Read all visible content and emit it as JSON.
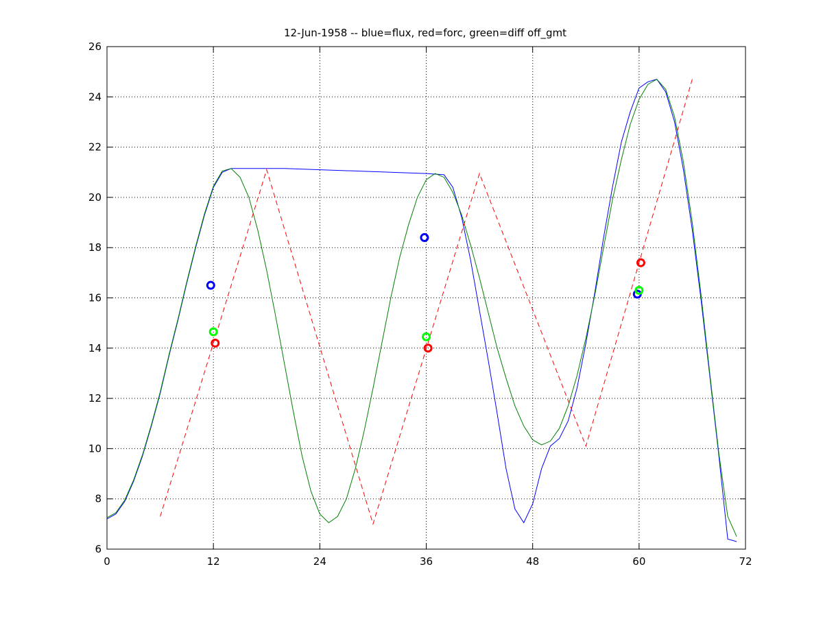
{
  "chart_data": {
    "type": "line",
    "title": "12-Jun-1958 -- blue=flux, red=forc, green=diff off_gmt",
    "xlabel": "",
    "ylabel": "",
    "xlim": [
      0,
      72
    ],
    "ylim": [
      6,
      26
    ],
    "xticks": [
      0,
      12,
      24,
      36,
      48,
      60,
      72
    ],
    "xtick_labels": [
      "0",
      "12",
      "24",
      "36",
      "48",
      "60",
      "72"
    ],
    "yticks": [
      6,
      8,
      10,
      12,
      14,
      16,
      18,
      20,
      22,
      24,
      26
    ],
    "ytick_labels": [
      "6",
      "8",
      "10",
      "12",
      "14",
      "16",
      "18",
      "20",
      "22",
      "24",
      "26"
    ],
    "grid": true,
    "colors": {
      "blue": "#0000ff",
      "green": "#008000",
      "red": "#ff0000",
      "marker_green": "#00ff00"
    },
    "series": [
      {
        "color": "#0000ff",
        "style": "solid",
        "x": [
          0,
          1,
          2,
          3,
          4,
          5,
          6,
          7,
          8,
          9,
          10,
          11,
          12,
          13,
          14,
          15,
          16,
          18,
          20,
          24,
          28,
          32,
          36,
          38,
          39,
          40,
          41,
          42,
          43,
          44,
          45,
          46,
          47,
          48,
          49,
          50,
          51,
          52,
          53,
          54,
          55,
          56,
          57,
          58,
          59,
          60,
          61,
          62,
          63,
          64,
          65,
          66,
          67,
          68,
          69,
          70,
          71
        ],
        "y": [
          7.2,
          7.4,
          7.9,
          8.7,
          9.7,
          10.9,
          12.2,
          13.7,
          15.1,
          16.6,
          18.0,
          19.3,
          20.4,
          21.0,
          21.15,
          21.15,
          21.15,
          21.15,
          21.15,
          21.1,
          21.05,
          21.0,
          20.95,
          20.9,
          20.4,
          19.2,
          17.5,
          15.5,
          13.5,
          11.4,
          9.2,
          7.6,
          7.05,
          7.8,
          9.2,
          10.1,
          10.4,
          11.1,
          12.4,
          14.2,
          16.2,
          18.4,
          20.4,
          22.2,
          23.4,
          24.35,
          24.6,
          24.7,
          24.2,
          23.0,
          21.1,
          18.7,
          15.9,
          12.8,
          9.7,
          6.4,
          6.3
        ]
      },
      {
        "color": "#008000",
        "style": "solid",
        "x": [
          0,
          1,
          2,
          3,
          4,
          5,
          6,
          7,
          8,
          9,
          10,
          11,
          12,
          13,
          14,
          15,
          16,
          17,
          18,
          19,
          20,
          21,
          22,
          23,
          24,
          25,
          26,
          27,
          28,
          29,
          30,
          31,
          32,
          33,
          34,
          35,
          36,
          37,
          38,
          39,
          40,
          41,
          42,
          43,
          44,
          45,
          46,
          47,
          48,
          49,
          50,
          51,
          52,
          53,
          54,
          55,
          56,
          57,
          58,
          59,
          60,
          61,
          62,
          63,
          64,
          65,
          66,
          67,
          68,
          69,
          70,
          71
        ],
        "y": [
          7.25,
          7.45,
          7.95,
          8.75,
          9.75,
          10.95,
          12.25,
          13.75,
          15.15,
          16.65,
          18.05,
          19.35,
          20.45,
          21.05,
          21.15,
          20.8,
          20.0,
          18.7,
          17.1,
          15.3,
          13.4,
          11.5,
          9.7,
          8.3,
          7.4,
          7.05,
          7.3,
          8.0,
          9.2,
          10.7,
          12.4,
          14.2,
          16.0,
          17.6,
          18.9,
          20.0,
          20.7,
          20.95,
          20.8,
          20.2,
          19.3,
          18.1,
          16.8,
          15.4,
          14.0,
          12.8,
          11.7,
          10.9,
          10.35,
          10.15,
          10.3,
          10.8,
          11.7,
          12.9,
          14.4,
          16.1,
          18.0,
          19.9,
          21.5,
          22.9,
          23.9,
          24.5,
          24.7,
          24.3,
          23.2,
          21.4,
          19.0,
          16.1,
          12.9,
          9.8,
          7.3,
          6.5
        ]
      },
      {
        "color": "#ff0000",
        "style": "dashed",
        "x": [
          6,
          18,
          30,
          42,
          54,
          66
        ],
        "y": [
          7.3,
          21.1,
          7.0,
          20.95,
          10.1,
          24.7
        ]
      }
    ],
    "markers": [
      {
        "color": "#0000ff",
        "x": 11.7,
        "y": 16.5
      },
      {
        "color": "#00ff00",
        "x": 12.0,
        "y": 14.65
      },
      {
        "color": "#ff0000",
        "x": 12.2,
        "y": 14.2
      },
      {
        "color": "#0000ff",
        "x": 35.8,
        "y": 18.4
      },
      {
        "color": "#00ff00",
        "x": 36.0,
        "y": 14.45
      },
      {
        "color": "#ff0000",
        "x": 36.2,
        "y": 14.0
      },
      {
        "color": "#0000ff",
        "x": 59.8,
        "y": 16.15
      },
      {
        "color": "#00ff00",
        "x": 60.0,
        "y": 16.3
      },
      {
        "color": "#ff0000",
        "x": 60.2,
        "y": 17.4
      }
    ]
  }
}
